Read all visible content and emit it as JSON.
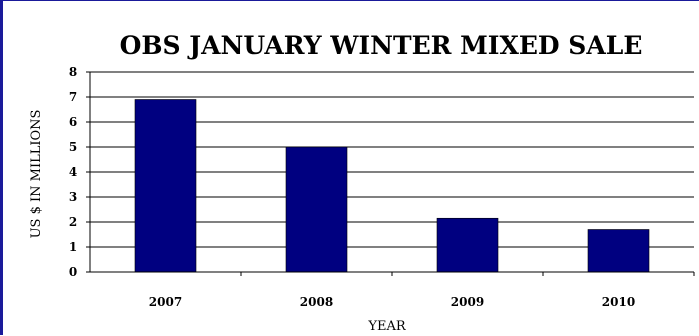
{
  "chart_data": {
    "type": "bar",
    "title": "OBS JANUARY WINTER MIXED SALE",
    "xlabel": "YEAR",
    "ylabel": "US $ IN MILLIONS",
    "categories": [
      "2007",
      "2008",
      "2009",
      "2010"
    ],
    "values": [
      6.9,
      5.0,
      2.15,
      1.7
    ],
    "ylim": [
      0,
      8
    ],
    "yticks": [
      "0",
      "1",
      "2",
      "3",
      "4",
      "5",
      "6",
      "7",
      "8"
    ],
    "grid": true,
    "legend": "none",
    "bar_color": "#000080"
  }
}
